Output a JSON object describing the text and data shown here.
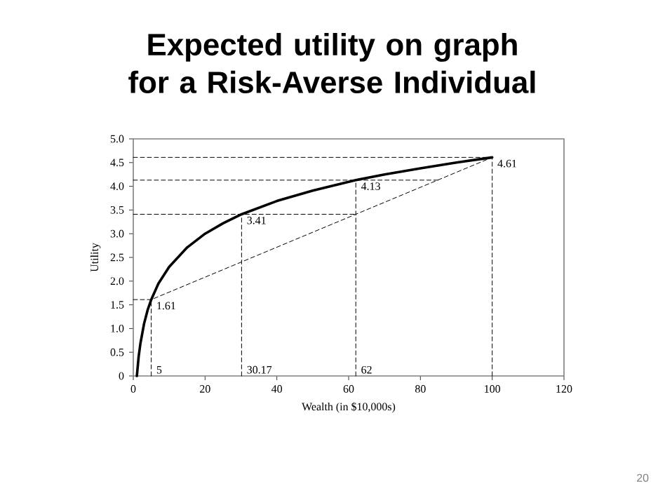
{
  "chart_data": {
    "type": "line",
    "title": "Expected utility on graph for a Risk-Averse Individual",
    "xlabel": "Wealth (in $10,000s)",
    "ylabel": "Utility",
    "xlim": [
      0,
      120
    ],
    "ylim": [
      0,
      5
    ],
    "xticks": [
      0,
      20,
      40,
      60,
      80,
      100,
      120
    ],
    "yticks": [
      0,
      {
        "value": 0.5,
        "label": "0.5"
      },
      {
        "value": 1,
        "label": "1.0"
      },
      {
        "value": 1.5,
        "label": "1.5"
      },
      {
        "value": 2,
        "label": "2.0"
      },
      {
        "value": 2.5,
        "label": "2.5"
      },
      {
        "value": 3,
        "label": "3.0"
      },
      {
        "value": 3.5,
        "label": "3.5"
      },
      {
        "value": 4,
        "label": "4.0"
      },
      {
        "value": 4.5,
        "label": "4.5"
      },
      {
        "value": 5,
        "label": "5.0"
      }
    ],
    "grid": false,
    "marker": "none",
    "series": [
      {
        "color": "#000000",
        "line_style": "solid",
        "x": [
          1,
          1.5,
          2,
          3,
          4,
          5,
          7,
          10,
          15,
          20,
          25,
          30.17,
          40,
          50,
          62,
          70,
          80,
          90,
          100
        ],
        "values": [
          0,
          0.41,
          0.69,
          1.1,
          1.39,
          1.61,
          1.95,
          2.3,
          2.71,
          3.0,
          3.22,
          3.41,
          3.69,
          3.91,
          4.13,
          4.25,
          4.38,
          4.5,
          4.61
        ]
      },
      {
        "color": "#000000",
        "line_style": "dashed",
        "x": [
          0,
          5,
          100
        ],
        "values": [
          1.61,
          1.61,
          4.61
        ]
      },
      {
        "color": "#000000",
        "line_style": "dashed",
        "x": [
          5,
          5
        ],
        "values": [
          0,
          1.61
        ]
      },
      {
        "color": "#000000",
        "line_style": "dashed",
        "x": [
          0,
          62
        ],
        "values": [
          3.41,
          3.41
        ]
      },
      {
        "color": "#000000",
        "line_style": "dashed",
        "x": [
          30.17,
          30.17
        ],
        "values": [
          0,
          3.41
        ]
      },
      {
        "color": "#000000",
        "line_style": "dashed",
        "x": [
          0,
          85
        ],
        "values": [
          4.13,
          4.13
        ]
      },
      {
        "color": "#000000",
        "line_style": "dashed",
        "x": [
          62,
          62
        ],
        "values": [
          0,
          4.13
        ]
      },
      {
        "color": "#000000",
        "line_style": "dashed",
        "x": [
          0,
          100
        ],
        "values": [
          4.61,
          4.61
        ]
      },
      {
        "color": "#000000",
        "line_style": "dashed",
        "x": [
          100,
          100
        ],
        "values": [
          0,
          4.61
        ]
      }
    ],
    "annotations": [
      {
        "text": "1.61",
        "x": 5,
        "y": 1.61
      },
      {
        "text": "3.41",
        "x": 30.17,
        "y": 3.41
      },
      {
        "text": "4.13",
        "x": 62,
        "y": 4.13
      },
      {
        "text": "4.61",
        "x": 100,
        "y": 4.61
      },
      {
        "text": "5",
        "x": 5,
        "y": 0
      },
      {
        "text": "30.17",
        "x": 30.17,
        "y": 0
      },
      {
        "text": "62",
        "x": 62,
        "y": 0
      },
      "20"
    ]
  }
}
